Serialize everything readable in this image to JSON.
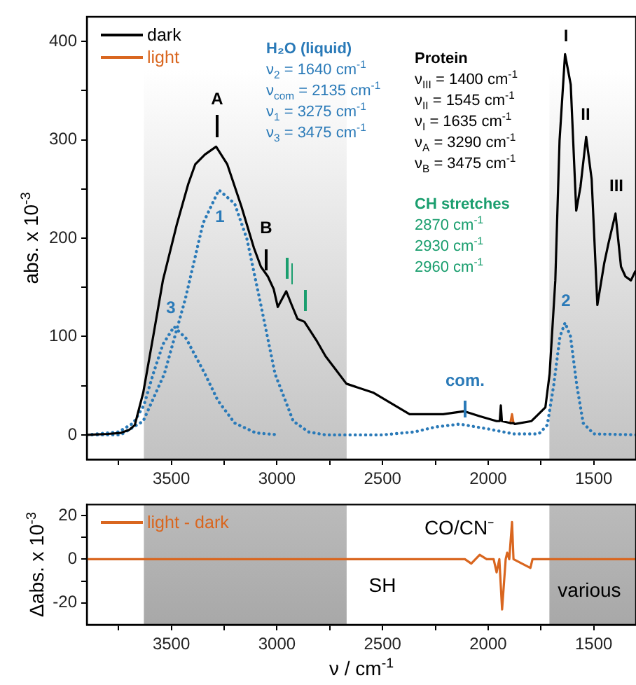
{
  "chart_data": [
    {
      "type": "line",
      "ylabel": "abs. x 10$^{-3}$",
      "legend": "top left",
      "marker": "none",
      "xlim": [
        3900,
        1300
      ],
      "ylim": [
        -25,
        425
      ],
      "xticks": [
        {
          "value": 3750,
          "label": null
        },
        3500,
        {
          "value": 3250,
          "label": null
        },
        3000,
        {
          "value": 2750,
          "label": null
        },
        2500,
        {
          "value": 2250,
          "label": null
        },
        2000,
        {
          "value": 1750,
          "label": null
        },
        1500
      ],
      "yticks": [
        0,
        {
          "value": 50,
          "label": null
        },
        100,
        {
          "value": 150,
          "label": null
        },
        200,
        {
          "value": 250,
          "label": null
        },
        300,
        {
          "value": 350,
          "label": null
        },
        400
      ],
      "bands": [
        {
          "axis": "x",
          "from": 3630,
          "to": 2670,
          "color": "#a8a8a8"
        },
        {
          "axis": "x",
          "from": 1710,
          "to": 1300,
          "color": "#a8a8a8"
        }
      ],
      "series": [
        {
          "name": "dark",
          "color": "#000000",
          "x": [
            3900,
            3800,
            3739,
            3700,
            3673,
            3633,
            3586,
            3540,
            3474,
            3420,
            3387,
            3341,
            3288,
            3235,
            3168,
            3109,
            3076,
            3043,
            3015,
            2996,
            2956,
            2930,
            2903,
            2870,
            2810,
            2770,
            2724,
            2671,
            2545,
            2372,
            2213,
            2113,
            2040,
            1960,
            1945,
            1940,
            1935,
            1895,
            1887,
            1880,
            1874,
            1795,
            1729,
            1709,
            1682,
            1662,
            1636,
            1609,
            1583,
            1563,
            1536,
            1510,
            1483,
            1450,
            1430,
            1397,
            1371,
            1350,
            1324,
            1304
          ],
          "values": [
            0,
            1,
            2,
            5,
            10,
            43,
            100,
            157,
            214,
            255,
            275,
            285,
            293,
            275,
            232,
            190,
            171,
            161,
            148,
            130,
            146,
            132,
            118,
            115,
            95,
            80,
            67,
            52,
            43,
            21,
            21,
            24,
            19,
            14,
            14,
            30,
            14,
            12,
            12,
            12,
            11,
            14,
            28,
            62,
            157,
            299,
            387,
            356,
            228,
            252,
            303,
            260,
            132,
            175,
            195,
            225,
            171,
            161,
            157,
            166
          ]
        },
        {
          "name": "light",
          "color": "#d9661f",
          "x": [
            1895,
            1887,
            1880
          ],
          "values": [
            12,
            21,
            12
          ]
        },
        {
          "color": "#2a7ab8",
          "line_style": "dotted",
          "x": [
            3900,
            3740,
            3633,
            3533,
            3434,
            3350,
            3275,
            3200,
            3142,
            3076,
            3009,
            2923,
            2850,
            2770,
            2500,
            2350,
            2250,
            2135,
            2000,
            1880,
            1760,
            1720,
            1690,
            1660,
            1636,
            1610,
            1580,
            1550,
            1500,
            1300
          ],
          "values": [
            0,
            0,
            14,
            62,
            138,
            215,
            249,
            235,
            199,
            132,
            62,
            14,
            3,
            0,
            0,
            3,
            8,
            11,
            6,
            1,
            1,
            10,
            50,
            100,
            114,
            100,
            50,
            12,
            1,
            0
          ]
        },
        {
          "color": "#2a7ab8",
          "line_style": "dotted",
          "x": [
            3900,
            3750,
            3680,
            3630,
            3586,
            3540,
            3487,
            3430,
            3341,
            3280,
            3200,
            3100,
            2990
          ],
          "values": [
            0,
            3,
            12,
            30,
            62,
            92,
            110,
            98,
            62,
            35,
            12,
            2,
            0
          ]
        }
      ],
      "annotations": [
        "H₂O (liquid)\nν$_{2}$ = 1640 cm$^{-1}$\nν$_{com}$ = 2135 cm$^{-1}$\nν$_{1}$ = 3275 cm$^{-1}$\nν$_{3}$ = 3475 cm$^{-1}$",
        "Protein\nν$_{III}$ = 1400 cm$^{-1}$\nν$_{II}$ = 1545 cm$^{-1}$\nν$_{I}$ = 1635 cm$^{-1}$\nν$_{A}$ = 3290 cm$^{-1}$\nν$_{B}$ = 3475 cm$^{-1}$",
        "CH stretches\n2870 cm$^{-1}$\n2930 cm$^{-1}$\n2960 cm$^{-1}$",
        "A",
        "B",
        "1",
        "3",
        "com.",
        "2",
        "I",
        "II",
        "III"
      ]
    },
    {
      "type": "line",
      "ylabel": "Δabs. x 10$^{-3}$",
      "xlabel": "ν / cm$^{-1}$",
      "legend": "top left",
      "marker": "none",
      "xlim": [
        3900,
        1300
      ],
      "ylim": [
        -30,
        25
      ],
      "xticks": [
        {
          "value": 3750,
          "label": null
        },
        3500,
        {
          "value": 3250,
          "label": null
        },
        3000,
        {
          "value": 2750,
          "label": null
        },
        2500,
        {
          "value": 2250,
          "label": null
        },
        2000,
        {
          "value": 1750,
          "label": null
        },
        1500
      ],
      "yticks": [
        -20,
        {
          "value": -10,
          "label": null
        },
        0,
        {
          "value": 10,
          "label": null
        },
        20
      ],
      "bands": [
        {
          "axis": "x",
          "from": 3630,
          "to": 2670,
          "color": "#a8a8a8"
        },
        {
          "axis": "x",
          "from": 1710,
          "to": 1300,
          "color": "#a8a8a8",
          "label": "various"
        }
      ],
      "series": [
        {
          "name": "light - dark",
          "color": "#d9661f",
          "x": [
            3900,
            2110,
            2080,
            2040,
            2007,
            1974,
            1960,
            1947,
            1934,
            1917,
            1910,
            1900,
            1887,
            1880,
            1800,
            1790,
            1300
          ],
          "values": [
            0,
            0,
            -2,
            2,
            0,
            0,
            -6,
            0,
            -23,
            0,
            3,
            0,
            17,
            0,
            -4,
            0,
            0
          ]
        }
      ],
      "annotations": [
        "CO/CN⁻",
        "SH"
      ]
    }
  ]
}
